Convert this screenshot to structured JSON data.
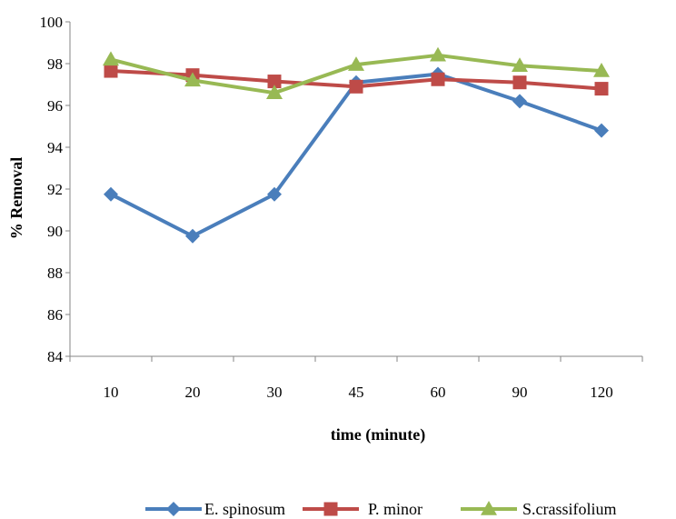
{
  "chart_data": {
    "type": "line",
    "categories": [
      "10",
      "20",
      "30",
      "45",
      "60",
      "90",
      "120"
    ],
    "xlabel": "time (minute)",
    "ylabel": "% Removal",
    "ylim": [
      84,
      100
    ],
    "yticks": [
      84,
      86,
      88,
      90,
      92,
      94,
      96,
      98,
      100
    ],
    "grid": false,
    "legend_position": "bottom",
    "series": [
      {
        "name": "E. spinosum",
        "color": "#4a7ebb",
        "marker": "diamond",
        "values": [
          91.75,
          89.75,
          91.75,
          97.1,
          97.5,
          96.2,
          94.8
        ]
      },
      {
        "name": "P. minor",
        "color": "#be4b48",
        "marker": "square",
        "values": [
          97.65,
          97.45,
          97.15,
          96.9,
          97.25,
          97.1,
          96.8
        ]
      },
      {
        "name": "S.crassifolium",
        "color": "#98b954",
        "marker": "triangle",
        "values": [
          98.2,
          97.2,
          96.6,
          97.95,
          98.4,
          97.9,
          97.65
        ]
      }
    ]
  }
}
